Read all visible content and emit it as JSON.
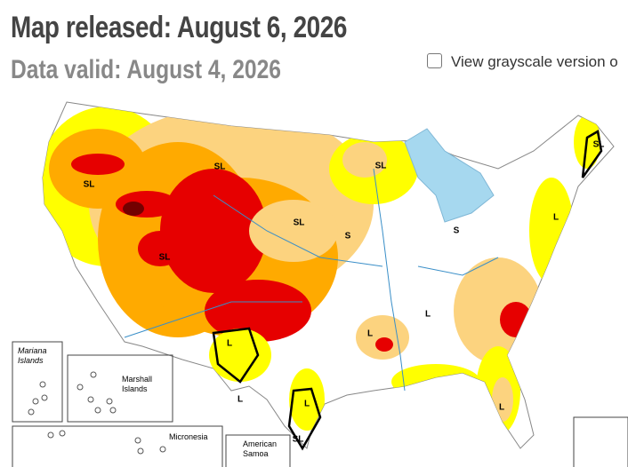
{
  "header": {
    "title": "Map released: August 6, 2026",
    "subtitle": "Data valid: August 4, 2026"
  },
  "grayscale_toggle": {
    "label": "View grayscale version o"
  },
  "map": {
    "labels": [
      "SL",
      "SL",
      "SL",
      "SL",
      "S",
      "S",
      "SL",
      "L",
      "L",
      "L",
      "L",
      "SL",
      "L",
      "L",
      "SL",
      "L"
    ],
    "insets": [
      "Mariana Islands",
      "Marshall Islands",
      "Micronesia",
      "American Samoa"
    ]
  }
}
